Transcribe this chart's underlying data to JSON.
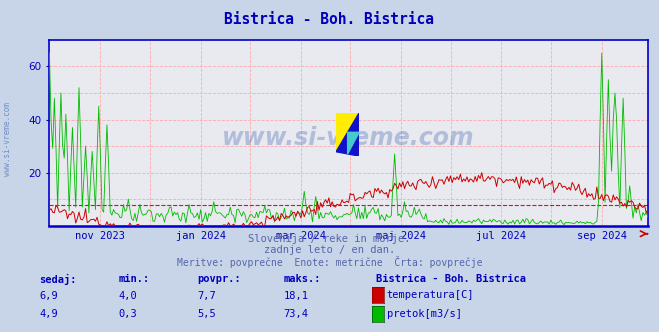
{
  "title": "Bistrica - Boh. Bistrica",
  "title_color": "#0000bb",
  "bg_color": "#c8d4e8",
  "plot_bg_color": "#e8eaf0",
  "x_labels": [
    "nov 2023",
    "jan 2024",
    "mar 2024",
    "maj 2024",
    "jul 2024",
    "sep 2024"
  ],
  "y_min": 0,
  "y_max": 70,
  "y_ticks": [
    20,
    40,
    60
  ],
  "avg_temp": 7.7,
  "avg_flow": 5.5,
  "subtitle1": "Slovenija / reke in morje.",
  "subtitle2": "zadnje leto / en dan.",
  "subtitle3": "Meritve: povprečne  Enote: metrične  Črta: povprečje",
  "subtitle_color": "#5566aa",
  "table_header": "Bistrica - Boh. Bistrica",
  "table_color": "#0000bb",
  "label_sedaj": "sedaj:",
  "label_min": "min.:",
  "label_povpr": "povpr.:",
  "label_maks": "maks.:",
  "temp_sedaj": "6,9",
  "temp_min": "4,0",
  "temp_povpr": "7,7",
  "temp_maks": "18,1",
  "flow_sedaj": "4,9",
  "flow_min": "0,3",
  "flow_povpr": "5,5",
  "flow_maks": "73,4",
  "temp_label": "temperatura[C]",
  "flow_label": "pretok[m3/s]",
  "temp_color": "#cc0000",
  "flow_color": "#00bb00",
  "border_color": "#0000cc",
  "axis_label_color": "#0000bb",
  "watermark_text": "www.si-vreme.com",
  "watermark_color": "#4466aa",
  "grid_h_color": "#ffaaaa",
  "grid_v_color": "#ffaaaa"
}
